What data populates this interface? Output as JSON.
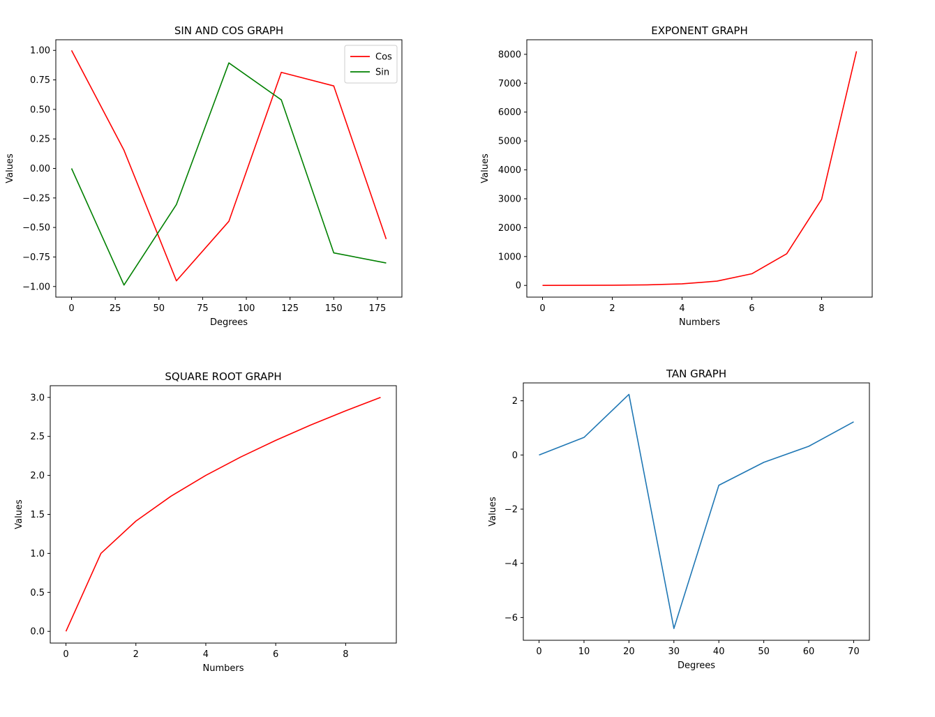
{
  "chart_data": [
    {
      "type": "line",
      "title": "SIN AND COS GRAPH",
      "xlabel": "Degrees",
      "ylabel": "Values",
      "xlim": [
        -9,
        189
      ],
      "ylim": [
        -1.09,
        1.09
      ],
      "xticks": [
        0,
        25,
        50,
        75,
        100,
        125,
        150,
        175
      ],
      "yticks": [
        -1.0,
        -0.75,
        -0.5,
        -0.25,
        0.0,
        0.25,
        0.5,
        0.75,
        1.0
      ],
      "ytick_decimals": 2,
      "grid": false,
      "legend": "top-right",
      "x": [
        0,
        30,
        60,
        90,
        120,
        150,
        180
      ],
      "series": [
        {
          "name": "Cos",
          "color": "#ff0000",
          "values": [
            1.0,
            0.154,
            -0.952,
            -0.448,
            0.814,
            0.699,
            -0.598
          ]
        },
        {
          "name": "Sin",
          "color": "#008000",
          "values": [
            0.0,
            -0.988,
            -0.305,
            0.894,
            0.581,
            -0.715,
            -0.801
          ]
        }
      ]
    },
    {
      "type": "line",
      "title": "EXPONENT GRAPH",
      "xlabel": "Numbers",
      "ylabel": "Values",
      "xlim": [
        -0.45,
        9.45
      ],
      "ylim": [
        -405,
        8504
      ],
      "xticks": [
        0,
        2,
        4,
        6,
        8
      ],
      "yticks": [
        0,
        1000,
        2000,
        3000,
        4000,
        5000,
        6000,
        7000,
        8000
      ],
      "ytick_decimals": 0,
      "grid": false,
      "legend": "none",
      "x": [
        0,
        1,
        2,
        3,
        4,
        5,
        6,
        7,
        8,
        9
      ],
      "series": [
        {
          "color": "#ff0000",
          "values": [
            1,
            2.718,
            7.389,
            20.09,
            54.6,
            148.4,
            403.4,
            1096.6,
            2981.0,
            8103.1
          ]
        }
      ]
    },
    {
      "type": "line",
      "title": "SQUARE ROOT GRAPH",
      "xlabel": "Numbers",
      "ylabel": "Values",
      "xlim": [
        -0.45,
        9.45
      ],
      "ylim": [
        -0.15,
        3.15
      ],
      "xticks": [
        0,
        2,
        4,
        6,
        8
      ],
      "yticks": [
        0.0,
        0.5,
        1.0,
        1.5,
        2.0,
        2.5,
        3.0
      ],
      "ytick_decimals": 1,
      "grid": false,
      "legend": "none",
      "x": [
        0,
        1,
        2,
        3,
        4,
        5,
        6,
        7,
        8,
        9
      ],
      "series": [
        {
          "color": "#ff0000",
          "values": [
            0.0,
            1.0,
            1.414,
            1.732,
            2.0,
            2.236,
            2.449,
            2.646,
            2.828,
            3.0
          ]
        }
      ]
    },
    {
      "type": "line",
      "title": "TAN GRAPH",
      "xlabel": "Degrees",
      "ylabel": "Values",
      "xlim": [
        -3.5,
        73.5
      ],
      "ylim": [
        -6.84,
        2.66
      ],
      "xticks": [
        0,
        10,
        20,
        30,
        40,
        50,
        60,
        70
      ],
      "yticks": [
        -6,
        -4,
        -2,
        0,
        2
      ],
      "ytick_decimals": 0,
      "grid": false,
      "legend": "none",
      "x": [
        0,
        10,
        20,
        30,
        40,
        50,
        60,
        70
      ],
      "series": [
        {
          "color": "#1f77b4",
          "values": [
            0.0,
            0.648,
            2.237,
            -6.405,
            -1.118,
            -0.272,
            0.32,
            1.222
          ]
        }
      ]
    }
  ]
}
